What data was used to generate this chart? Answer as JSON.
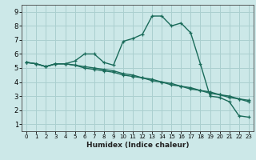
{
  "xlabel": "Humidex (Indice chaleur)",
  "bg_color": "#cce8e8",
  "line_color": "#1a6b5a",
  "grid_color": "#aacfcf",
  "xlim": [
    -0.5,
    23.5
  ],
  "ylim": [
    0.5,
    9.5
  ],
  "xticks": [
    0,
    1,
    2,
    3,
    4,
    5,
    6,
    7,
    8,
    9,
    10,
    11,
    12,
    13,
    14,
    15,
    16,
    17,
    18,
    19,
    20,
    21,
    22,
    23
  ],
  "yticks": [
    1,
    2,
    3,
    4,
    5,
    6,
    7,
    8,
    9
  ],
  "line1_x": [
    0,
    1,
    2,
    3,
    4,
    5,
    6,
    7,
    8,
    9,
    10,
    11,
    12,
    13,
    14,
    15,
    16,
    17,
    18,
    19,
    20,
    21,
    22,
    23
  ],
  "line1_y": [
    5.4,
    5.3,
    5.1,
    5.3,
    5.3,
    5.5,
    6.0,
    6.0,
    5.4,
    5.2,
    6.9,
    7.1,
    7.4,
    8.7,
    8.7,
    8.0,
    8.2,
    7.5,
    5.3,
    3.0,
    2.9,
    2.6,
    1.6,
    1.5
  ],
  "line2_x": [
    0,
    1,
    2,
    3,
    4,
    5,
    6,
    7,
    8,
    9,
    10,
    11,
    12,
    13,
    14,
    15,
    16,
    17,
    18,
    19,
    20,
    21,
    22,
    23
  ],
  "line2_y": [
    5.4,
    5.3,
    5.1,
    5.3,
    5.3,
    5.2,
    5.1,
    5.0,
    4.9,
    4.8,
    4.6,
    4.5,
    4.3,
    4.2,
    4.0,
    3.9,
    3.7,
    3.6,
    3.4,
    3.3,
    3.1,
    3.0,
    2.8,
    2.7
  ],
  "line3_x": [
    0,
    1,
    2,
    3,
    4,
    5,
    6,
    7,
    8,
    9,
    10,
    11,
    12,
    13,
    14,
    15,
    16,
    17,
    18,
    19,
    20,
    21,
    22,
    23
  ],
  "line3_y": [
    5.4,
    5.3,
    5.1,
    5.3,
    5.3,
    5.2,
    5.0,
    4.9,
    4.8,
    4.7,
    4.5,
    4.4,
    4.3,
    4.1,
    4.0,
    3.8,
    3.7,
    3.5,
    3.4,
    3.2,
    3.1,
    2.9,
    2.8,
    2.6
  ]
}
